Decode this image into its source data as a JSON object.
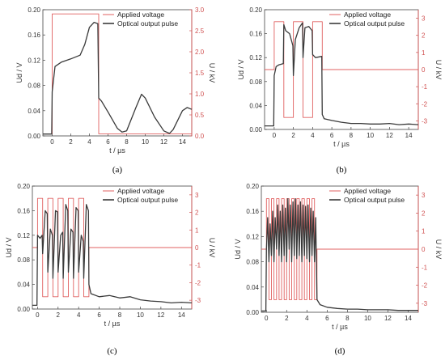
{
  "figure": {
    "colors": {
      "voltage": "#e06060",
      "optical": "#3a3a3a",
      "axis": "#444444",
      "right_axis": "#d05050"
    },
    "legend_labels": [
      "Applied voltage",
      "Optical output pulse"
    ]
  },
  "chart_data": [
    {
      "panel": "(a)",
      "type": "line",
      "xlabel": "t / µs",
      "ylabel_left": "Ud / V",
      "ylabel_right": "U / kV",
      "xlim": [
        -1,
        15
      ],
      "xticks": [
        0,
        2,
        4,
        6,
        8,
        10,
        12,
        14
      ],
      "ylim_left": [
        0,
        0.2
      ],
      "yticks_left": [
        "0.00",
        "0.04",
        "0.08",
        "0.12",
        "0.16",
        "0.20"
      ],
      "ylim_right": [
        0,
        3.0
      ],
      "yticks_right": [
        "0.0",
        "0.5",
        "1.0",
        "1.5",
        "2.0",
        "2.5",
        "3.0"
      ],
      "legend": "top-right",
      "series": [
        {
          "name": "Applied voltage",
          "axis": "right",
          "x": [
            -1,
            0,
            0,
            5,
            5,
            15
          ],
          "y": [
            0.05,
            0.05,
            2.9,
            2.9,
            0.05,
            0.05
          ]
        },
        {
          "name": "Optical output pulse",
          "axis": "left",
          "x": [
            -1,
            -0.05,
            0,
            0.3,
            1,
            2,
            3,
            3.5,
            4,
            4.5,
            4.9,
            5,
            5.3,
            6,
            7,
            7.5,
            8,
            9,
            9.6,
            10,
            11,
            12,
            12.6,
            13,
            14,
            14.5,
            15
          ],
          "y": [
            0.003,
            0.003,
            0.07,
            0.11,
            0.117,
            0.122,
            0.128,
            0.145,
            0.172,
            0.18,
            0.178,
            0.06,
            0.055,
            0.038,
            0.012,
            0.006,
            0.008,
            0.045,
            0.066,
            0.06,
            0.03,
            0.008,
            0.004,
            0.01,
            0.04,
            0.045,
            0.042
          ]
        }
      ]
    },
    {
      "panel": "(b)",
      "type": "line",
      "xlabel": "t / µs",
      "ylabel_left": "Ud / V",
      "ylabel_right": "U / kV",
      "xlim": [
        -1,
        15
      ],
      "xticks": [
        0,
        2,
        4,
        6,
        8,
        10,
        12,
        14
      ],
      "ylim_left": [
        0,
        0.2
      ],
      "yticks_left": [
        "0.00",
        "0.04",
        "0.08",
        "0.12",
        "0.16",
        "0.20"
      ],
      "ylim_right": [
        -3.5,
        3.5
      ],
      "yticks_right": [
        "-3",
        "-2",
        "-1",
        "0",
        "1",
        "2",
        "3"
      ],
      "legend": "top-right",
      "series": [
        {
          "name": "Applied voltage",
          "axis": "right",
          "x": [
            -1,
            0,
            0,
            1,
            1,
            2,
            2,
            3,
            3,
            4,
            4,
            5,
            5,
            15
          ],
          "y": [
            0,
            0,
            2.8,
            2.8,
            -2.8,
            -2.8,
            2.8,
            2.8,
            -2.8,
            -2.8,
            2.8,
            2.8,
            0,
            0
          ]
        },
        {
          "name": "Optical output pulse",
          "axis": "left",
          "x": [
            -1,
            -0.05,
            0,
            0.2,
            0.5,
            0.95,
            1,
            1.2,
            1.6,
            1.95,
            2,
            2.2,
            2.6,
            2.95,
            3,
            3.2,
            3.6,
            3.95,
            4,
            4.3,
            4.95,
            5,
            5.2,
            6,
            7,
            8,
            9,
            10,
            11,
            12,
            13,
            14,
            15
          ],
          "y": [
            0.006,
            0.006,
            0.09,
            0.105,
            0.108,
            0.11,
            0.175,
            0.165,
            0.16,
            0.14,
            0.09,
            0.15,
            0.17,
            0.178,
            0.12,
            0.17,
            0.172,
            0.165,
            0.125,
            0.12,
            0.122,
            0.025,
            0.018,
            0.015,
            0.012,
            0.01,
            0.01,
            0.009,
            0.009,
            0.01,
            0.008,
            0.009,
            0.008
          ]
        }
      ]
    },
    {
      "panel": "(c)",
      "type": "line",
      "xlabel": "t / µs",
      "ylabel_left": "Ud / V",
      "ylabel_right": "U / kV",
      "xlim": [
        -0.5,
        15
      ],
      "xticks": [
        0,
        2,
        4,
        6,
        8,
        10,
        12,
        14
      ],
      "ylim_left": [
        0,
        0.2
      ],
      "yticks_left": [
        "0.00",
        "0.04",
        "0.08",
        "0.12",
        "0.16",
        "0.20"
      ],
      "ylim_right": [
        -3.5,
        3.5
      ],
      "yticks_right": [
        "-3",
        "-2",
        "-1",
        "0",
        "1",
        "2",
        "3"
      ],
      "legend": "top-right",
      "series": [
        {
          "name": "Applied voltage",
          "axis": "right",
          "x": [
            -0.5,
            0,
            0,
            0.5,
            0.5,
            1,
            1,
            1.5,
            1.5,
            2,
            2,
            2.5,
            2.5,
            3,
            3,
            3.5,
            3.5,
            4,
            4,
            4.5,
            4.5,
            5,
            5,
            15
          ],
          "y": [
            0,
            0,
            2.8,
            2.8,
            -2.8,
            -2.8,
            2.8,
            2.8,
            -2.8,
            -2.8,
            2.8,
            2.8,
            -2.8,
            -2.8,
            2.8,
            2.8,
            -2.8,
            -2.8,
            2.8,
            2.8,
            -2.8,
            -2.8,
            0,
            0
          ]
        },
        {
          "name": "Optical output pulse",
          "axis": "left",
          "x": [
            -0.5,
            -0.05,
            0,
            0.25,
            0.45,
            0.5,
            0.75,
            0.95,
            1,
            1.25,
            1.45,
            1.5,
            1.75,
            1.95,
            2,
            2.25,
            2.45,
            2.5,
            2.75,
            2.95,
            3,
            3.25,
            3.45,
            3.5,
            3.75,
            3.95,
            4,
            4.25,
            4.45,
            4.5,
            4.75,
            4.95,
            5,
            5.2,
            6,
            7,
            8,
            9,
            10,
            11,
            12,
            13,
            14,
            15
          ],
          "y": [
            0.006,
            0.006,
            0.12,
            0.115,
            0.12,
            0.09,
            0.16,
            0.155,
            0.06,
            0.13,
            0.12,
            0.05,
            0.16,
            0.158,
            0.06,
            0.12,
            0.125,
            0.05,
            0.17,
            0.16,
            0.06,
            0.13,
            0.125,
            0.05,
            0.165,
            0.16,
            0.06,
            0.12,
            0.11,
            0.05,
            0.17,
            0.16,
            0.04,
            0.025,
            0.02,
            0.022,
            0.018,
            0.02,
            0.015,
            0.013,
            0.012,
            0.01,
            0.011,
            0.01
          ]
        }
      ]
    },
    {
      "panel": "(d)",
      "type": "line",
      "xlabel": "t / µs",
      "ylabel_left": "Ud / V",
      "ylabel_right": "U / kV",
      "xlim": [
        -0.5,
        15
      ],
      "xticks": [
        0,
        2,
        4,
        6,
        8,
        10,
        12,
        14
      ],
      "ylim_left": [
        0,
        0.2
      ],
      "yticks_left": [
        "0.00",
        "0.04",
        "0.08",
        "0.12",
        "0.16",
        "0.20"
      ],
      "ylim_right": [
        -3.5,
        3.5
      ],
      "yticks_right": [
        "-3",
        "-2",
        "-1",
        "0",
        "1",
        "2",
        "3"
      ],
      "legend": "top-right",
      "series": [
        {
          "name": "Applied voltage",
          "axis": "right",
          "x": [
            -0.5,
            0,
            0,
            0.25,
            0.25,
            0.5,
            0.5,
            0.75,
            0.75,
            1,
            1,
            1.25,
            1.25,
            1.5,
            1.5,
            1.75,
            1.75,
            2,
            2,
            2.25,
            2.25,
            2.5,
            2.5,
            2.75,
            2.75,
            3,
            3,
            3.25,
            3.25,
            3.5,
            3.5,
            3.75,
            3.75,
            4,
            4,
            4.25,
            4.25,
            4.5,
            4.5,
            4.75,
            4.75,
            5,
            5,
            15
          ],
          "y": [
            0,
            0,
            2.8,
            2.8,
            -2.8,
            -2.8,
            2.8,
            2.8,
            -2.8,
            -2.8,
            2.8,
            2.8,
            -2.8,
            -2.8,
            2.8,
            2.8,
            -2.8,
            -2.8,
            2.8,
            2.8,
            -2.8,
            -2.8,
            2.8,
            2.8,
            -2.8,
            -2.8,
            2.8,
            2.8,
            -2.8,
            -2.8,
            2.8,
            2.8,
            -2.8,
            -2.8,
            2.8,
            2.8,
            -2.8,
            -2.8,
            2.8,
            2.8,
            -2.8,
            -2.8,
            0,
            0
          ]
        },
        {
          "name": "Optical output pulse",
          "axis": "left",
          "x": [
            -0.5,
            -0.05,
            0,
            0.12,
            0.25,
            0.37,
            0.5,
            0.62,
            0.75,
            0.87,
            1,
            1.12,
            1.25,
            1.37,
            1.5,
            1.62,
            1.75,
            1.87,
            2,
            2.12,
            2.25,
            2.37,
            2.5,
            2.62,
            2.75,
            2.87,
            3,
            3.12,
            3.25,
            3.37,
            3.5,
            3.62,
            3.75,
            3.87,
            4,
            4.12,
            4.25,
            4.37,
            4.5,
            4.62,
            4.75,
            4.87,
            5,
            5.3,
            6,
            7,
            8,
            9,
            10,
            11,
            12,
            13,
            14,
            15
          ],
          "y": [
            0.002,
            0.002,
            0.1,
            0.15,
            0.08,
            0.14,
            0.09,
            0.16,
            0.08,
            0.15,
            0.1,
            0.17,
            0.09,
            0.16,
            0.08,
            0.17,
            0.09,
            0.165,
            0.08,
            0.18,
            0.1,
            0.17,
            0.08,
            0.175,
            0.09,
            0.18,
            0.085,
            0.17,
            0.09,
            0.175,
            0.08,
            0.17,
            0.09,
            0.168,
            0.085,
            0.17,
            0.08,
            0.165,
            0.09,
            0.16,
            0.08,
            0.15,
            0.02,
            0.012,
            0.008,
            0.006,
            0.005,
            0.005,
            0.004,
            0.004,
            0.004,
            0.003,
            0.003,
            0.003
          ]
        }
      ]
    }
  ]
}
